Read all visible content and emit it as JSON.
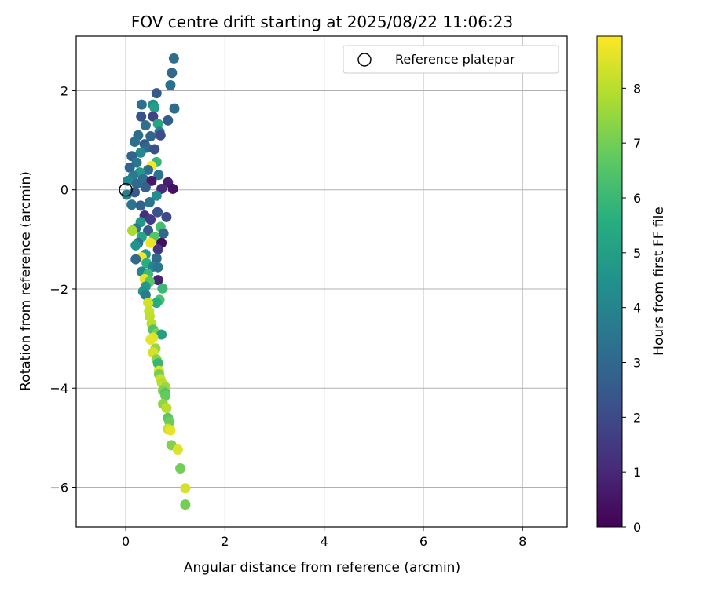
{
  "chart_data": {
    "type": "scatter",
    "title": "FOV centre drift starting at 2025/08/22 11:06:23",
    "xlabel": "Angular distance from reference (arcmin)",
    "ylabel": "Rotation from reference (arcmin)",
    "xlim": [
      -1.0,
      8.9
    ],
    "ylim": [
      -6.8,
      3.1
    ],
    "xticks": [
      0,
      2,
      4,
      6,
      8
    ],
    "yticks": [
      -6,
      -4,
      -2,
      0,
      2
    ],
    "grid": true,
    "legend": {
      "placement": "top-right",
      "entries": [
        {
          "label": "Reference platepar",
          "marker": "open-circle"
        }
      ]
    },
    "reference_point": {
      "x": 0,
      "y": 0
    },
    "colorbar": {
      "label": "Hours from first FF file",
      "colormap": "viridis",
      "range": [
        0,
        8.95
      ],
      "ticks": [
        0,
        1,
        2,
        3,
        4,
        5,
        6,
        7,
        8
      ]
    },
    "points": [
      [
        0.97,
        2.65,
        3.2
      ],
      [
        0.93,
        2.36,
        3.0
      ],
      [
        0.9,
        2.11,
        3.3
      ],
      [
        0.98,
        1.64,
        3.1
      ],
      [
        0.55,
        1.72,
        4.4
      ],
      [
        0.32,
        1.72,
        3.2
      ],
      [
        0.62,
        1.95,
        2.5
      ],
      [
        0.58,
        1.66,
        5.0
      ],
      [
        0.85,
        1.4,
        2.6
      ],
      [
        0.55,
        1.48,
        1.8
      ],
      [
        0.4,
        1.3,
        3.2
      ],
      [
        0.65,
        1.33,
        5.3
      ],
      [
        0.31,
        1.48,
        2.2
      ],
      [
        0.68,
        1.17,
        3.8
      ],
      [
        0.7,
        1.1,
        2.1
      ],
      [
        0.5,
        1.08,
        2.9
      ],
      [
        0.25,
        1.1,
        3.1
      ],
      [
        0.38,
        0.92,
        2.5
      ],
      [
        0.18,
        0.97,
        3.3
      ],
      [
        0.42,
        0.85,
        3.0
      ],
      [
        0.58,
        0.82,
        2.2
      ],
      [
        0.62,
        0.56,
        5.9
      ],
      [
        0.3,
        0.75,
        4.2
      ],
      [
        0.12,
        0.68,
        2.8
      ],
      [
        0.52,
        0.48,
        8.9
      ],
      [
        0.22,
        0.55,
        3.5
      ],
      [
        0.08,
        0.45,
        2.9
      ],
      [
        0.45,
        0.4,
        3.2
      ],
      [
        0.66,
        0.3,
        3.4
      ],
      [
        0.28,
        0.35,
        4.8
      ],
      [
        0.15,
        0.28,
        3.7
      ],
      [
        0.35,
        0.22,
        3.3
      ],
      [
        0.52,
        0.18,
        0.6
      ],
      [
        0.85,
        0.15,
        0.8
      ],
      [
        0.95,
        0.02,
        0.4
      ],
      [
        0.72,
        0.02,
        1.1
      ],
      [
        0.04,
        0.18,
        4.1
      ],
      [
        0.22,
        0.12,
        3.0
      ],
      [
        0.4,
        0.05,
        2.7
      ],
      [
        0.62,
        -0.12,
        4.3
      ],
      [
        0.02,
        -0.1,
        3.8
      ],
      [
        0.18,
        -0.05,
        2.5
      ],
      [
        0.12,
        -0.3,
        3.4
      ],
      [
        0.3,
        -0.32,
        2.8
      ],
      [
        0.48,
        -0.25,
        3.5
      ],
      [
        0.64,
        -0.45,
        2.2
      ],
      [
        0.82,
        -0.55,
        2.0
      ],
      [
        0.38,
        -0.52,
        1.2
      ],
      [
        0.5,
        -0.6,
        1.6
      ],
      [
        0.3,
        -0.65,
        4.7
      ],
      [
        0.2,
        -0.78,
        3.6
      ],
      [
        0.45,
        -0.82,
        2.5
      ],
      [
        0.7,
        -0.75,
        6.2
      ],
      [
        0.76,
        -0.88,
        3.0
      ],
      [
        0.13,
        -0.82,
        7.8
      ],
      [
        0.32,
        -0.95,
        5.2
      ],
      [
        0.58,
        -0.95,
        6.5
      ],
      [
        0.25,
        -1.07,
        3.2
      ],
      [
        0.5,
        -1.07,
        8.7
      ],
      [
        0.72,
        -1.07,
        0.3
      ],
      [
        0.65,
        -1.2,
        1.4
      ],
      [
        0.2,
        -1.12,
        4.5
      ],
      [
        0.4,
        -1.3,
        4.9
      ],
      [
        0.32,
        -1.36,
        8.8
      ],
      [
        0.62,
        -1.38,
        3.1
      ],
      [
        0.2,
        -1.4,
        3.0
      ],
      [
        0.42,
        -1.48,
        5.6
      ],
      [
        0.55,
        -1.55,
        4.0
      ],
      [
        0.65,
        -1.56,
        3.5
      ],
      [
        0.32,
        -1.65,
        4.1
      ],
      [
        0.45,
        -1.7,
        6.0
      ],
      [
        0.38,
        -1.8,
        8.6
      ],
      [
        0.65,
        -1.82,
        0.9
      ],
      [
        0.48,
        -1.85,
        6.6
      ],
      [
        0.4,
        -1.95,
        4.8
      ],
      [
        0.35,
        -2.05,
        4.6
      ],
      [
        0.74,
        -1.99,
        6.0
      ],
      [
        0.4,
        -2.12,
        3.7
      ],
      [
        0.68,
        -2.22,
        6.3
      ],
      [
        0.62,
        -2.28,
        5.5
      ],
      [
        0.45,
        -2.28,
        8.3
      ],
      [
        0.47,
        -2.45,
        8.2
      ],
      [
        0.48,
        -2.55,
        8.1
      ],
      [
        0.52,
        -2.7,
        8.0
      ],
      [
        0.55,
        -2.82,
        6.4
      ],
      [
        0.62,
        -2.9,
        7.1
      ],
      [
        0.72,
        -2.92,
        5.0
      ],
      [
        0.55,
        -2.98,
        8.5
      ],
      [
        0.5,
        -3.02,
        8.6
      ],
      [
        0.6,
        -3.2,
        7.6
      ],
      [
        0.55,
        -3.28,
        8.4
      ],
      [
        0.62,
        -3.42,
        7.3
      ],
      [
        0.65,
        -3.5,
        5.9
      ],
      [
        0.67,
        -3.65,
        8.5
      ],
      [
        0.67,
        -3.72,
        7.0
      ],
      [
        0.7,
        -3.82,
        8.2
      ],
      [
        0.73,
        -3.9,
        7.9
      ],
      [
        0.78,
        -3.96,
        8.2
      ],
      [
        0.8,
        -3.98,
        7.6
      ],
      [
        0.75,
        -4.05,
        7.1
      ],
      [
        0.8,
        -4.1,
        6.4
      ],
      [
        0.8,
        -4.15,
        6.8
      ],
      [
        0.75,
        -4.32,
        7.4
      ],
      [
        0.82,
        -4.4,
        8.0
      ],
      [
        0.85,
        -4.6,
        6.6
      ],
      [
        0.88,
        -4.68,
        6.9
      ],
      [
        0.85,
        -4.82,
        8.2
      ],
      [
        0.9,
        -4.85,
        8.6
      ],
      [
        0.92,
        -5.15,
        7.2
      ],
      [
        1.05,
        -5.24,
        8.5
      ],
      [
        1.1,
        -5.62,
        7.0
      ],
      [
        1.2,
        -6.02,
        8.4
      ],
      [
        1.2,
        -6.35,
        7.0
      ]
    ]
  }
}
